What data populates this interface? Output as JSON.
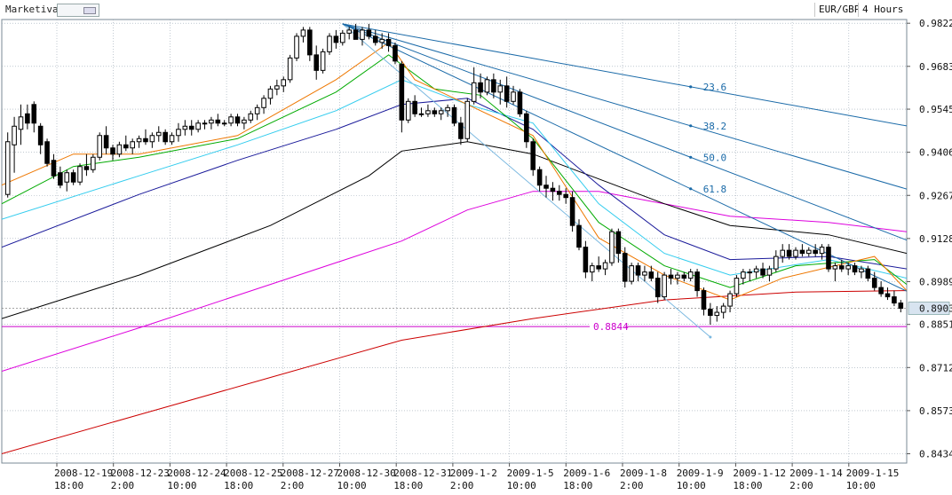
{
  "header": {
    "brand": "Marketiva",
    "symbol": "EUR/GBP",
    "timeframe": "4 Hours"
  },
  "colors": {
    "bull_candle": "#ffffff",
    "bear_candle": "#000000",
    "grid": "#9aa7b4",
    "fib_line": "#1a6aa8",
    "ma_red": "#cc0000",
    "ma_magenta": "#dd00dd",
    "ma_black": "#000000",
    "ma_navy": "#1a1a9a",
    "ma_cyan": "#33ccee",
    "ma_green": "#00aa00",
    "ma_orange": "#ee7700",
    "support_line": "#cc00cc",
    "last_price_bg": "#d8e4f0"
  },
  "chart_data": {
    "type": "candlestick",
    "ylim": [
      0.8404,
      0.9834
    ],
    "y_ticks": [
      "0.9822",
      "0.9683",
      "0.9545",
      "0.9406",
      "0.9267",
      "0.9128",
      "0.8989",
      "0.8851",
      "0.8712",
      "0.8573",
      "0.8434"
    ],
    "x_ticks": [
      {
        "date": "2008-12-19",
        "time": "18:00"
      },
      {
        "date": "2008-12-23",
        "time": "2:00"
      },
      {
        "date": "2008-12-24",
        "time": "10:00"
      },
      {
        "date": "2008-12-25",
        "time": "18:00"
      },
      {
        "date": "2008-12-27",
        "time": "2:00"
      },
      {
        "date": "2008-12-30",
        "time": "10:00"
      },
      {
        "date": "2008-12-31",
        "time": "18:00"
      },
      {
        "date": "2009-1-2",
        "time": "2:00"
      },
      {
        "date": "2009-1-5",
        "time": "10:00"
      },
      {
        "date": "2009-1-6",
        "time": "18:00"
      },
      {
        "date": "2009-1-8",
        "time": "2:00"
      },
      {
        "date": "2009-1-9",
        "time": "10:00"
      },
      {
        "date": "2009-1-12",
        "time": "18:00"
      },
      {
        "date": "2009-1-14",
        "time": "2:00"
      },
      {
        "date": "2009-1-15",
        "time": "10:00"
      }
    ],
    "grid": true,
    "last_price": "0.8903",
    "support_level": "0.8844",
    "fan_labels": [
      "23.6",
      "38.2",
      "50.0",
      "61.8"
    ],
    "candles": [
      [
        0.927,
        0.947,
        0.926,
        0.944
      ],
      [
        0.943,
        0.952,
        0.934,
        0.949
      ],
      [
        0.948,
        0.956,
        0.943,
        0.952
      ],
      [
        0.953,
        0.956,
        0.948,
        0.95
      ],
      [
        0.956,
        0.957,
        0.947,
        0.95
      ],
      [
        0.949,
        0.95,
        0.94,
        0.943
      ],
      [
        0.944,
        0.945,
        0.936,
        0.937
      ],
      [
        0.938,
        0.94,
        0.932,
        0.933
      ],
      [
        0.934,
        0.936,
        0.929,
        0.93
      ],
      [
        0.931,
        0.935,
        0.928,
        0.934
      ],
      [
        0.934,
        0.935,
        0.93,
        0.931
      ],
      [
        0.931,
        0.937,
        0.93,
        0.936
      ],
      [
        0.936,
        0.94,
        0.933,
        0.935
      ],
      [
        0.935,
        0.94,
        0.934,
        0.939
      ],
      [
        0.939,
        0.947,
        0.938,
        0.946
      ],
      [
        0.946,
        0.949,
        0.94,
        0.942
      ],
      [
        0.942,
        0.943,
        0.938,
        0.94
      ],
      [
        0.94,
        0.944,
        0.939,
        0.943
      ],
      [
        0.943,
        0.946,
        0.941,
        0.942
      ],
      [
        0.942,
        0.945,
        0.94,
        0.944
      ],
      [
        0.944,
        0.946,
        0.942,
        0.945
      ],
      [
        0.945,
        0.948,
        0.943,
        0.944
      ],
      [
        0.944,
        0.947,
        0.942,
        0.946
      ],
      [
        0.946,
        0.949,
        0.944,
        0.947
      ],
      [
        0.947,
        0.948,
        0.943,
        0.944
      ],
      [
        0.944,
        0.947,
        0.943,
        0.946
      ],
      [
        0.946,
        0.95,
        0.944,
        0.948
      ],
      [
        0.948,
        0.951,
        0.946,
        0.949
      ],
      [
        0.949,
        0.951,
        0.946,
        0.948
      ],
      [
        0.948,
        0.951,
        0.947,
        0.95
      ],
      [
        0.95,
        0.951,
        0.948,
        0.95
      ],
      [
        0.95,
        0.952,
        0.948,
        0.951
      ],
      [
        0.951,
        0.953,
        0.949,
        0.95
      ],
      [
        0.95,
        0.951,
        0.949,
        0.95
      ],
      [
        0.95,
        0.953,
        0.949,
        0.952
      ],
      [
        0.952,
        0.953,
        0.949,
        0.95
      ],
      [
        0.95,
        0.952,
        0.948,
        0.951
      ],
      [
        0.951,
        0.954,
        0.95,
        0.953
      ],
      [
        0.953,
        0.956,
        0.951,
        0.955
      ],
      [
        0.955,
        0.959,
        0.953,
        0.958
      ],
      [
        0.958,
        0.962,
        0.956,
        0.961
      ],
      [
        0.961,
        0.964,
        0.959,
        0.962
      ],
      [
        0.962,
        0.965,
        0.96,
        0.964
      ],
      [
        0.964,
        0.972,
        0.963,
        0.971
      ],
      [
        0.971,
        0.979,
        0.97,
        0.978
      ],
      [
        0.978,
        0.981,
        0.976,
        0.98
      ],
      [
        0.98,
        0.981,
        0.97,
        0.972
      ],
      [
        0.972,
        0.975,
        0.964,
        0.967
      ],
      [
        0.967,
        0.974,
        0.966,
        0.973
      ],
      [
        0.973,
        0.979,
        0.972,
        0.978
      ],
      [
        0.978,
        0.98,
        0.974,
        0.976
      ],
      [
        0.976,
        0.98,
        0.975,
        0.979
      ],
      [
        0.979,
        0.981,
        0.977,
        0.98
      ],
      [
        0.98,
        0.982,
        0.978,
        0.977
      ],
      [
        0.977,
        0.981,
        0.975,
        0.98
      ],
      [
        0.98,
        0.982,
        0.977,
        0.978
      ],
      [
        0.978,
        0.98,
        0.975,
        0.976
      ],
      [
        0.976,
        0.979,
        0.974,
        0.977
      ],
      [
        0.977,
        0.979,
        0.973,
        0.975
      ],
      [
        0.975,
        0.976,
        0.969,
        0.97
      ],
      [
        0.969,
        0.97,
        0.947,
        0.951
      ],
      [
        0.951,
        0.958,
        0.95,
        0.957
      ],
      [
        0.957,
        0.959,
        0.952,
        0.953
      ],
      [
        0.953,
        0.955,
        0.952,
        0.953
      ],
      [
        0.953,
        0.956,
        0.952,
        0.954
      ],
      [
        0.954,
        0.955,
        0.952,
        0.953
      ],
      [
        0.953,
        0.955,
        0.951,
        0.954
      ],
      [
        0.954,
        0.956,
        0.952,
        0.955
      ],
      [
        0.955,
        0.956,
        0.949,
        0.95
      ],
      [
        0.95,
        0.952,
        0.943,
        0.945
      ],
      [
        0.945,
        0.958,
        0.944,
        0.957
      ],
      [
        0.957,
        0.968,
        0.956,
        0.963
      ],
      [
        0.963,
        0.966,
        0.958,
        0.96
      ],
      [
        0.96,
        0.965,
        0.959,
        0.964
      ],
      [
        0.964,
        0.966,
        0.958,
        0.96
      ],
      [
        0.96,
        0.964,
        0.956,
        0.962
      ],
      [
        0.962,
        0.965,
        0.955,
        0.957
      ],
      [
        0.957,
        0.962,
        0.956,
        0.96
      ],
      [
        0.96,
        0.961,
        0.952,
        0.953
      ],
      [
        0.953,
        0.954,
        0.942,
        0.944
      ],
      [
        0.944,
        0.945,
        0.933,
        0.935
      ],
      [
        0.935,
        0.936,
        0.928,
        0.93
      ],
      [
        0.93,
        0.933,
        0.926,
        0.929
      ],
      [
        0.929,
        0.931,
        0.925,
        0.928
      ],
      [
        0.928,
        0.93,
        0.925,
        0.927
      ],
      [
        0.927,
        0.929,
        0.924,
        0.926
      ],
      [
        0.926,
        0.928,
        0.915,
        0.917
      ],
      [
        0.917,
        0.919,
        0.909,
        0.91
      ],
      [
        0.91,
        0.912,
        0.9,
        0.902
      ],
      [
        0.902,
        0.905,
        0.899,
        0.904
      ],
      [
        0.904,
        0.907,
        0.902,
        0.903
      ],
      [
        0.903,
        0.906,
        0.901,
        0.905
      ],
      [
        0.905,
        0.916,
        0.904,
        0.915
      ],
      [
        0.915,
        0.916,
        0.905,
        0.908
      ],
      [
        0.908,
        0.91,
        0.897,
        0.899
      ],
      [
        0.899,
        0.905,
        0.898,
        0.904
      ],
      [
        0.904,
        0.905,
        0.899,
        0.901
      ],
      [
        0.901,
        0.904,
        0.899,
        0.902
      ],
      [
        0.902,
        0.904,
        0.899,
        0.9
      ],
      [
        0.9,
        0.902,
        0.892,
        0.894
      ],
      [
        0.894,
        0.902,
        0.893,
        0.901
      ],
      [
        0.901,
        0.903,
        0.898,
        0.9
      ],
      [
        0.9,
        0.902,
        0.898,
        0.901
      ],
      [
        0.901,
        0.902,
        0.899,
        0.9
      ],
      [
        0.9,
        0.903,
        0.899,
        0.902
      ],
      [
        0.902,
        0.903,
        0.894,
        0.896
      ],
      [
        0.896,
        0.897,
        0.888,
        0.89
      ],
      [
        0.89,
        0.892,
        0.885,
        0.888
      ],
      [
        0.888,
        0.891,
        0.886,
        0.889
      ],
      [
        0.889,
        0.892,
        0.887,
        0.891
      ],
      [
        0.891,
        0.896,
        0.889,
        0.895
      ],
      [
        0.895,
        0.901,
        0.894,
        0.9
      ],
      [
        0.9,
        0.903,
        0.898,
        0.902
      ],
      [
        0.902,
        0.903,
        0.899,
        0.902
      ],
      [
        0.902,
        0.904,
        0.9,
        0.903
      ],
      [
        0.903,
        0.905,
        0.9,
        0.901
      ],
      [
        0.901,
        0.904,
        0.899,
        0.903
      ],
      [
        0.903,
        0.909,
        0.902,
        0.907
      ],
      [
        0.907,
        0.911,
        0.905,
        0.909
      ],
      [
        0.909,
        0.911,
        0.906,
        0.907
      ],
      [
        0.907,
        0.91,
        0.906,
        0.909
      ],
      [
        0.909,
        0.911,
        0.907,
        0.908
      ],
      [
        0.908,
        0.91,
        0.907,
        0.909
      ],
      [
        0.909,
        0.911,
        0.907,
        0.908
      ],
      [
        0.908,
        0.911,
        0.906,
        0.91
      ],
      [
        0.91,
        0.911,
        0.902,
        0.903
      ],
      [
        0.903,
        0.905,
        0.899,
        0.904
      ],
      [
        0.904,
        0.906,
        0.902,
        0.903
      ],
      [
        0.903,
        0.905,
        0.901,
        0.904
      ],
      [
        0.904,
        0.905,
        0.901,
        0.902
      ],
      [
        0.902,
        0.904,
        0.9,
        0.903
      ],
      [
        0.903,
        0.904,
        0.899,
        0.9
      ],
      [
        0.9,
        0.902,
        0.896,
        0.897
      ],
      [
        0.897,
        0.899,
        0.894,
        0.895
      ],
      [
        0.895,
        0.897,
        0.893,
        0.894
      ],
      [
        0.894,
        0.896,
        0.891,
        0.892
      ],
      [
        0.892,
        0.893,
        0.889,
        0.8903
      ]
    ],
    "moving_averages": [
      {
        "color": "#cc0000",
        "points": [
          [
            0,
            0.8434
          ],
          [
            20,
            0.856
          ],
          [
            40,
            0.868
          ],
          [
            60,
            0.88
          ],
          [
            80,
            0.887
          ],
          [
            100,
            0.893
          ],
          [
            120,
            0.8955
          ],
          [
            140,
            0.896
          ]
        ]
      },
      {
        "color": "#dd00dd",
        "points": [
          [
            0,
            0.87
          ],
          [
            20,
            0.884
          ],
          [
            40,
            0.898
          ],
          [
            60,
            0.912
          ],
          [
            70,
            0.922
          ],
          [
            80,
            0.928
          ],
          [
            90,
            0.928
          ],
          [
            100,
            0.924
          ],
          [
            110,
            0.92
          ],
          [
            125,
            0.918
          ],
          [
            140,
            0.915
          ]
        ]
      },
      {
        "color": "#000000",
        "points": [
          [
            0,
            0.887
          ],
          [
            20,
            0.901
          ],
          [
            40,
            0.917
          ],
          [
            55,
            0.933
          ],
          [
            60,
            0.941
          ],
          [
            70,
            0.944
          ],
          [
            80,
            0.94
          ],
          [
            90,
            0.932
          ],
          [
            100,
            0.924
          ],
          [
            110,
            0.917
          ],
          [
            125,
            0.914
          ],
          [
            140,
            0.908
          ]
        ]
      },
      {
        "color": "#1a1a9a",
        "points": [
          [
            0,
            0.91
          ],
          [
            20,
            0.927
          ],
          [
            35,
            0.938
          ],
          [
            50,
            0.948
          ],
          [
            60,
            0.956
          ],
          [
            70,
            0.958
          ],
          [
            80,
            0.948
          ],
          [
            90,
            0.93
          ],
          [
            100,
            0.914
          ],
          [
            110,
            0.906
          ],
          [
            125,
            0.907
          ],
          [
            140,
            0.903
          ]
        ]
      },
      {
        "color": "#33ccee",
        "points": [
          [
            0,
            0.919
          ],
          [
            20,
            0.933
          ],
          [
            35,
            0.943
          ],
          [
            50,
            0.954
          ],
          [
            60,
            0.964
          ],
          [
            70,
            0.956
          ],
          [
            80,
            0.95
          ],
          [
            90,
            0.924
          ],
          [
            100,
            0.908
          ],
          [
            110,
            0.901
          ],
          [
            125,
            0.906
          ],
          [
            140,
            0.9
          ]
        ]
      },
      {
        "color": "#00aa00",
        "points": [
          [
            0,
            0.924
          ],
          [
            10,
            0.936
          ],
          [
            20,
            0.939
          ],
          [
            35,
            0.945
          ],
          [
            50,
            0.96
          ],
          [
            58,
            0.972
          ],
          [
            65,
            0.961
          ],
          [
            72,
            0.959
          ],
          [
            80,
            0.945
          ],
          [
            90,
            0.918
          ],
          [
            100,
            0.904
          ],
          [
            110,
            0.897
          ],
          [
            120,
            0.904
          ],
          [
            132,
            0.906
          ],
          [
            140,
            0.898
          ]
        ]
      },
      {
        "color": "#ee7700",
        "points": [
          [
            0,
            0.93
          ],
          [
            10,
            0.94
          ],
          [
            20,
            0.94
          ],
          [
            35,
            0.946
          ],
          [
            50,
            0.964
          ],
          [
            58,
            0.976
          ],
          [
            62,
            0.964
          ],
          [
            70,
            0.956
          ],
          [
            80,
            0.946
          ],
          [
            90,
            0.913
          ],
          [
            100,
            0.901
          ],
          [
            110,
            0.893
          ],
          [
            118,
            0.9
          ],
          [
            132,
            0.907
          ],
          [
            140,
            0.896
          ]
        ]
      }
    ]
  }
}
